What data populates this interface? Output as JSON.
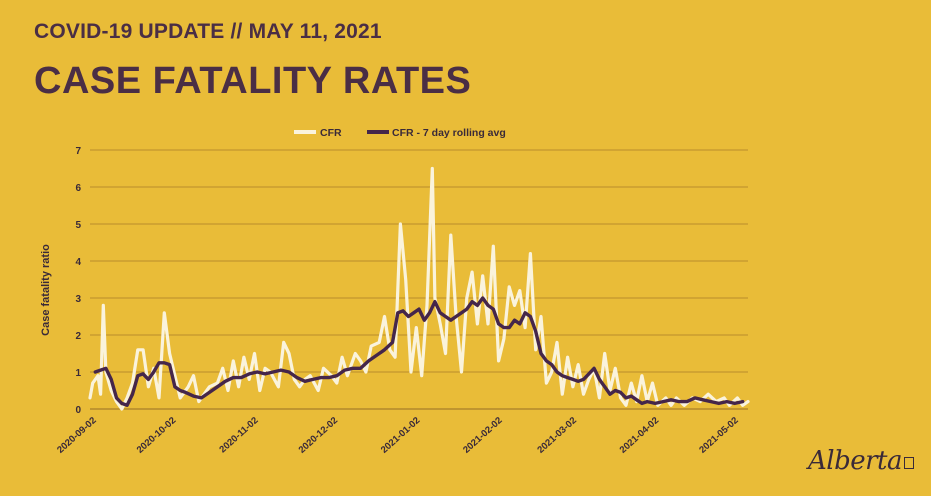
{
  "header": {
    "subtitle": "COVID-19 UPDATE // MAY 11, 2021",
    "title": "CASE FATALITY RATES"
  },
  "logo": {
    "text": "Alberta"
  },
  "colors": {
    "background": "#E9BC38",
    "title": "#4A2E45",
    "cfr": "#FAF3DC",
    "avg": "#45264A",
    "grid": "#A87E2A"
  },
  "chart_data": {
    "type": "line",
    "title": "",
    "xlabel": "",
    "ylabel": "Case fatality ratio",
    "ylim": [
      0,
      7
    ],
    "yticks": [
      0,
      1,
      2,
      3,
      4,
      5,
      6,
      7
    ],
    "grid": true,
    "legend_position": "top",
    "x_tick_labels": [
      "2020-09-02",
      "2020-10-02",
      "2020-11-02",
      "2020-12-02",
      "2021-01-02",
      "2021-02-02",
      "2021-03-02",
      "2021-04-02",
      "2021-05-02"
    ],
    "x_tick_days": [
      0,
      30,
      61,
      91,
      122,
      153,
      181,
      212,
      242
    ],
    "x_range_days": [
      -1,
      247
    ],
    "series": [
      {
        "name": "CFR",
        "points": [
          [
            -1,
            0.3
          ],
          [
            0,
            0.7
          ],
          [
            2,
            0.9
          ],
          [
            3,
            0.4
          ],
          [
            4,
            2.8
          ],
          [
            5,
            1.0
          ],
          [
            7,
            0.5
          ],
          [
            9,
            0.2
          ],
          [
            11,
            0.0
          ],
          [
            13,
            0.3
          ],
          [
            15,
            0.7
          ],
          [
            17,
            1.6
          ],
          [
            19,
            1.6
          ],
          [
            21,
            0.6
          ],
          [
            23,
            1.1
          ],
          [
            25,
            0.3
          ],
          [
            27,
            2.6
          ],
          [
            29,
            1.5
          ],
          [
            31,
            0.9
          ],
          [
            33,
            0.3
          ],
          [
            36,
            0.6
          ],
          [
            38,
            0.9
          ],
          [
            40,
            0.2
          ],
          [
            42,
            0.4
          ],
          [
            44,
            0.6
          ],
          [
            47,
            0.7
          ],
          [
            49,
            1.1
          ],
          [
            51,
            0.5
          ],
          [
            53,
            1.3
          ],
          [
            55,
            0.6
          ],
          [
            57,
            1.4
          ],
          [
            59,
            0.8
          ],
          [
            61,
            1.5
          ],
          [
            63,
            0.5
          ],
          [
            65,
            1.1
          ],
          [
            67,
            1.0
          ],
          [
            70,
            0.6
          ],
          [
            72,
            1.8
          ],
          [
            74,
            1.5
          ],
          [
            76,
            0.8
          ],
          [
            78,
            0.6
          ],
          [
            80,
            0.8
          ],
          [
            82,
            0.9
          ],
          [
            85,
            0.5
          ],
          [
            87,
            1.1
          ],
          [
            90,
            0.9
          ],
          [
            92,
            0.7
          ],
          [
            94,
            1.4
          ],
          [
            96,
            0.9
          ],
          [
            99,
            1.5
          ],
          [
            101,
            1.3
          ],
          [
            103,
            1.0
          ],
          [
            105,
            1.7
          ],
          [
            108,
            1.8
          ],
          [
            110,
            2.5
          ],
          [
            112,
            1.6
          ],
          [
            114,
            1.4
          ],
          [
            116,
            5.0
          ],
          [
            118,
            3.5
          ],
          [
            120,
            1.0
          ],
          [
            122,
            2.2
          ],
          [
            124,
            0.9
          ],
          [
            126,
            2.8
          ],
          [
            128,
            6.5
          ],
          [
            129,
            3.0
          ],
          [
            131,
            2.3
          ],
          [
            133,
            1.5
          ],
          [
            135,
            4.7
          ],
          [
            137,
            2.5
          ],
          [
            139,
            1.0
          ],
          [
            141,
            3.0
          ],
          [
            143,
            3.7
          ],
          [
            145,
            2.3
          ],
          [
            147,
            3.6
          ],
          [
            149,
            2.3
          ],
          [
            151,
            4.4
          ],
          [
            153,
            1.3
          ],
          [
            155,
            1.9
          ],
          [
            157,
            3.3
          ],
          [
            159,
            2.8
          ],
          [
            161,
            3.2
          ],
          [
            163,
            2.2
          ],
          [
            165,
            4.2
          ],
          [
            167,
            1.6
          ],
          [
            169,
            2.5
          ],
          [
            171,
            0.7
          ],
          [
            173,
            1.0
          ],
          [
            175,
            1.8
          ],
          [
            177,
            0.4
          ],
          [
            179,
            1.4
          ],
          [
            181,
            0.6
          ],
          [
            183,
            1.2
          ],
          [
            185,
            0.4
          ],
          [
            187,
            0.8
          ],
          [
            189,
            1.1
          ],
          [
            191,
            0.3
          ],
          [
            193,
            1.5
          ],
          [
            195,
            0.5
          ],
          [
            197,
            1.1
          ],
          [
            199,
            0.3
          ],
          [
            201,
            0.1
          ],
          [
            203,
            0.7
          ],
          [
            205,
            0.2
          ],
          [
            207,
            0.9
          ],
          [
            209,
            0.2
          ],
          [
            211,
            0.7
          ],
          [
            213,
            0.1
          ],
          [
            216,
            0.3
          ],
          [
            218,
            0.1
          ],
          [
            220,
            0.3
          ],
          [
            223,
            0.1
          ],
          [
            226,
            0.3
          ],
          [
            229,
            0.2
          ],
          [
            232,
            0.4
          ],
          [
            235,
            0.2
          ],
          [
            238,
            0.3
          ],
          [
            240,
            0.1
          ],
          [
            243,
            0.3
          ],
          [
            245,
            0.1
          ],
          [
            247,
            0.2
          ]
        ]
      },
      {
        "name": "CFR - 7 day rolling avg",
        "points": [
          [
            1,
            1.0
          ],
          [
            3,
            1.05
          ],
          [
            5,
            1.1
          ],
          [
            7,
            0.8
          ],
          [
            9,
            0.3
          ],
          [
            11,
            0.15
          ],
          [
            13,
            0.1
          ],
          [
            15,
            0.4
          ],
          [
            17,
            0.9
          ],
          [
            19,
            0.95
          ],
          [
            21,
            0.8
          ],
          [
            23,
            1.0
          ],
          [
            25,
            1.25
          ],
          [
            27,
            1.25
          ],
          [
            29,
            1.2
          ],
          [
            31,
            0.6
          ],
          [
            33,
            0.5
          ],
          [
            35,
            0.45
          ],
          [
            38,
            0.35
          ],
          [
            41,
            0.3
          ],
          [
            44,
            0.45
          ],
          [
            47,
            0.6
          ],
          [
            50,
            0.75
          ],
          [
            53,
            0.85
          ],
          [
            56,
            0.85
          ],
          [
            59,
            0.95
          ],
          [
            62,
            1.0
          ],
          [
            65,
            0.95
          ],
          [
            68,
            1.0
          ],
          [
            71,
            1.05
          ],
          [
            74,
            1.0
          ],
          [
            77,
            0.85
          ],
          [
            80,
            0.75
          ],
          [
            83,
            0.8
          ],
          [
            86,
            0.85
          ],
          [
            89,
            0.85
          ],
          [
            92,
            0.9
          ],
          [
            95,
            1.05
          ],
          [
            98,
            1.1
          ],
          [
            101,
            1.1
          ],
          [
            104,
            1.3
          ],
          [
            107,
            1.45
          ],
          [
            110,
            1.6
          ],
          [
            113,
            1.8
          ],
          [
            115,
            2.6
          ],
          [
            117,
            2.65
          ],
          [
            119,
            2.5
          ],
          [
            121,
            2.6
          ],
          [
            123,
            2.7
          ],
          [
            125,
            2.4
          ],
          [
            127,
            2.6
          ],
          [
            129,
            2.9
          ],
          [
            131,
            2.6
          ],
          [
            133,
            2.5
          ],
          [
            135,
            2.4
          ],
          [
            137,
            2.5
          ],
          [
            139,
            2.6
          ],
          [
            141,
            2.7
          ],
          [
            143,
            2.9
          ],
          [
            145,
            2.8
          ],
          [
            147,
            3.0
          ],
          [
            149,
            2.8
          ],
          [
            151,
            2.7
          ],
          [
            153,
            2.3
          ],
          [
            155,
            2.2
          ],
          [
            157,
            2.2
          ],
          [
            159,
            2.4
          ],
          [
            161,
            2.3
          ],
          [
            163,
            2.6
          ],
          [
            165,
            2.5
          ],
          [
            167,
            2.1
          ],
          [
            169,
            1.5
          ],
          [
            171,
            1.3
          ],
          [
            173,
            1.2
          ],
          [
            175,
            1.0
          ],
          [
            177,
            0.9
          ],
          [
            179,
            0.85
          ],
          [
            181,
            0.8
          ],
          [
            183,
            0.75
          ],
          [
            185,
            0.8
          ],
          [
            187,
            0.95
          ],
          [
            189,
            1.1
          ],
          [
            191,
            0.8
          ],
          [
            193,
            0.6
          ],
          [
            195,
            0.4
          ],
          [
            197,
            0.5
          ],
          [
            199,
            0.45
          ],
          [
            201,
            0.3
          ],
          [
            203,
            0.35
          ],
          [
            205,
            0.25
          ],
          [
            207,
            0.15
          ],
          [
            209,
            0.2
          ],
          [
            212,
            0.15
          ],
          [
            215,
            0.2
          ],
          [
            218,
            0.25
          ],
          [
            221,
            0.2
          ],
          [
            224,
            0.2
          ],
          [
            227,
            0.3
          ],
          [
            230,
            0.25
          ],
          [
            233,
            0.2
          ],
          [
            236,
            0.15
          ],
          [
            239,
            0.2
          ],
          [
            242,
            0.15
          ],
          [
            245,
            0.2
          ]
        ]
      }
    ]
  }
}
